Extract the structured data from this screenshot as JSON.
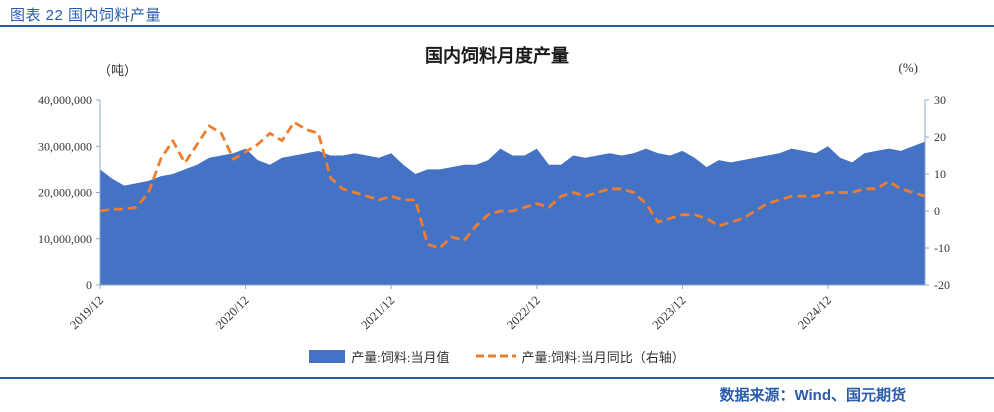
{
  "figure": {
    "header": "图表 22 国内饲料产量",
    "source": "数据来源：Wind、国元期货"
  },
  "colors": {
    "accent_blue": "#2a5caa",
    "area_blue": "#4472C4",
    "line_orange": "#ED7D31",
    "axis": "#8FA8CC"
  },
  "chart_data": {
    "type": "area",
    "title": "国内饲料月度产量",
    "unit_left": "（吨）",
    "unit_right": "(%)",
    "grid": false,
    "legend_position": "bottom",
    "ylim_left": [
      0,
      40000000
    ],
    "ytick_step_left": 10000000,
    "ylim_right": [
      -20,
      30
    ],
    "ytick_step_right": 10,
    "x_tick_labels": [
      "2019/12",
      "2020/12",
      "2021/12",
      "2022/12",
      "2023/12",
      "2024/12"
    ],
    "x_tick_indices": [
      0,
      12,
      24,
      36,
      48,
      60
    ],
    "x": [
      "2019/12",
      "2020/01",
      "2020/02",
      "2020/03",
      "2020/04",
      "2020/05",
      "2020/06",
      "2020/07",
      "2020/08",
      "2020/09",
      "2020/10",
      "2020/11",
      "2020/12",
      "2021/01",
      "2021/02",
      "2021/03",
      "2021/04",
      "2021/05",
      "2021/06",
      "2021/07",
      "2021/08",
      "2021/09",
      "2021/10",
      "2021/11",
      "2021/12",
      "2022/01",
      "2022/02",
      "2022/03",
      "2022/04",
      "2022/05",
      "2022/06",
      "2022/07",
      "2022/08",
      "2022/09",
      "2022/10",
      "2022/11",
      "2022/12",
      "2023/01",
      "2023/02",
      "2023/03",
      "2023/04",
      "2023/05",
      "2023/06",
      "2023/07",
      "2023/08",
      "2023/09",
      "2023/10",
      "2023/11",
      "2023/12",
      "2024/01",
      "2024/02",
      "2024/03",
      "2024/04",
      "2024/05",
      "2024/06",
      "2024/07",
      "2024/08",
      "2024/09",
      "2024/10",
      "2024/11",
      "2024/12",
      "2025/01",
      "2025/02",
      "2025/03",
      "2025/04",
      "2025/05",
      "2025/06",
      "2025/07",
      "2025/08"
    ],
    "series": [
      {
        "name": "产量:饲料:当月值",
        "type": "area",
        "axis": "left",
        "color": "#4472C4",
        "values": [
          25000000,
          23000000,
          21500000,
          22000000,
          22500000,
          23500000,
          24000000,
          25000000,
          26000000,
          27500000,
          28000000,
          28500000,
          29500000,
          27000000,
          26000000,
          27500000,
          28000000,
          28500000,
          29000000,
          28000000,
          28000000,
          28500000,
          28000000,
          27500000,
          28500000,
          26000000,
          24000000,
          25000000,
          25000000,
          25500000,
          26000000,
          26000000,
          27000000,
          29500000,
          28000000,
          28000000,
          29500000,
          26000000,
          26000000,
          28000000,
          27500000,
          28000000,
          28500000,
          28000000,
          28500000,
          29500000,
          28500000,
          28000000,
          29000000,
          27500000,
          25500000,
          27000000,
          26500000,
          27000000,
          27500000,
          28000000,
          28500000,
          29500000,
          29000000,
          28500000,
          30000000,
          27500000,
          26500000,
          28500000,
          29000000,
          29500000,
          29000000,
          30000000,
          31000000
        ]
      },
      {
        "name": "产量:饲料:当月同比（右轴）",
        "type": "line-dashed",
        "axis": "right",
        "color": "#ED7D31",
        "values": [
          0,
          0.5,
          0.5,
          1,
          5,
          14,
          19,
          13,
          18,
          23,
          21,
          14,
          16,
          18,
          21,
          19,
          24,
          22,
          21,
          9,
          6,
          5,
          4,
          3,
          4,
          3,
          3,
          -9,
          -10,
          -7,
          -8,
          -4,
          -1,
          0,
          0,
          1,
          2,
          1,
          4,
          5,
          4,
          5,
          6,
          6,
          5,
          2,
          -3,
          -2,
          -1,
          -1,
          -2,
          -4,
          -3,
          -2,
          0,
          2,
          3,
          4,
          4,
          4,
          5,
          5,
          5,
          6,
          6,
          8,
          6,
          5,
          4
        ]
      }
    ]
  }
}
